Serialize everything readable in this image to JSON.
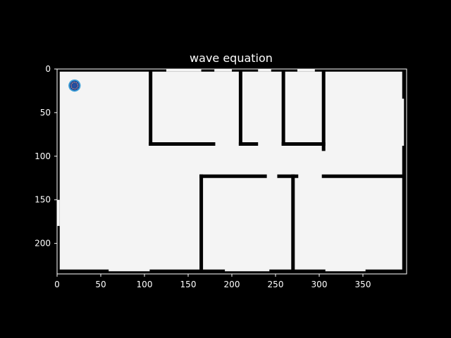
{
  "chart_data": {
    "type": "heatmap",
    "title": "wave equation",
    "xlabel": "",
    "ylabel": "",
    "xlim": [
      0,
      400
    ],
    "ylim": [
      235,
      0
    ],
    "x_ticks": [
      0,
      50,
      100,
      150,
      200,
      250,
      300,
      350
    ],
    "y_ticks": [
      0,
      50,
      100,
      150,
      200
    ],
    "grid": false,
    "background_color": "#000000",
    "floor_color": "#f4f4f4",
    "wall_color": "#000000",
    "wave_colors": [
      "#1f4e9c",
      "#3fa0d8",
      "#f08a6a",
      "#2b4fa3"
    ],
    "wave_source": {
      "x": 20,
      "y": 19,
      "radius": 7
    },
    "walls": [
      {
        "x1": 0,
        "y1": 1,
        "x2": 400,
        "y2": 1
      },
      {
        "x1": 0,
        "y1": 234,
        "x2": 400,
        "y2": 234
      },
      {
        "x1": 1,
        "y1": 0,
        "x2": 1,
        "y2": 235
      },
      {
        "x1": 399,
        "y1": 0,
        "x2": 399,
        "y2": 235
      },
      {
        "x1": 107,
        "y1": 2,
        "x2": 107,
        "y2": 86
      },
      {
        "x1": 107,
        "y1": 86,
        "x2": 179,
        "y2": 86
      },
      {
        "x1": 210,
        "y1": 86,
        "x2": 228,
        "y2": 86
      },
      {
        "x1": 210,
        "y1": 2,
        "x2": 210,
        "y2": 86
      },
      {
        "x1": 259,
        "y1": 2,
        "x2": 259,
        "y2": 86
      },
      {
        "x1": 259,
        "y1": 86,
        "x2": 305,
        "y2": 86
      },
      {
        "x1": 305,
        "y1": 2,
        "x2": 305,
        "y2": 92
      },
      {
        "x1": 305,
        "y1": 123,
        "x2": 400,
        "y2": 123
      },
      {
        "x1": 165,
        "y1": 123,
        "x2": 238,
        "y2": 123
      },
      {
        "x1": 165,
        "y1": 123,
        "x2": 165,
        "y2": 235
      },
      {
        "x1": 254,
        "y1": 123,
        "x2": 274,
        "y2": 123
      },
      {
        "x1": 270,
        "y1": 123,
        "x2": 270,
        "y2": 235
      },
      {
        "x1": 397,
        "y1": 2,
        "x2": 397,
        "y2": 32
      },
      {
        "x1": 397,
        "y1": 90,
        "x2": 397,
        "y2": 235
      },
      {
        "x1": 0,
        "y1": 232,
        "x2": 57,
        "y2": 232
      },
      {
        "x1": 108,
        "y1": 232,
        "x2": 190,
        "y2": 232
      },
      {
        "x1": 245,
        "y1": 232,
        "x2": 305,
        "y2": 232
      },
      {
        "x1": 355,
        "y1": 232,
        "x2": 400,
        "y2": 232
      }
    ],
    "gaps": [
      {
        "x1": 125,
        "y1": 0,
        "x2": 165,
        "y2": 3
      },
      {
        "x1": 180,
        "y1": 0,
        "x2": 200,
        "y2": 3
      },
      {
        "x1": 230,
        "y1": 0,
        "x2": 245,
        "y2": 3
      },
      {
        "x1": 275,
        "y1": 0,
        "x2": 295,
        "y2": 3
      },
      {
        "x1": 0,
        "y1": 150,
        "x2": 3,
        "y2": 180
      }
    ]
  }
}
